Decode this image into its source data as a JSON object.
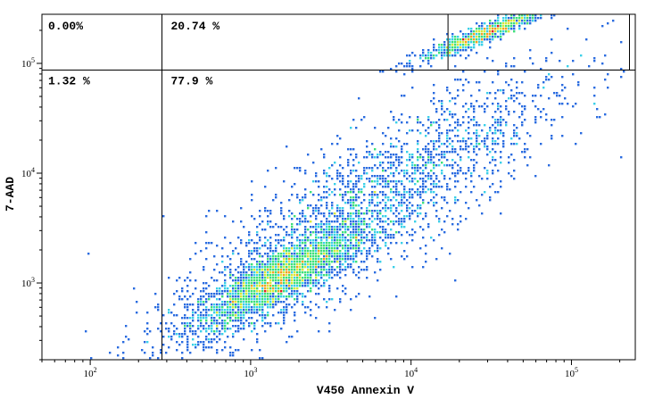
{
  "chart_data": {
    "type": "scatter",
    "title": "",
    "xlabel": "V450 Annexin V",
    "ylabel": "7-AAD",
    "x_scale": "log",
    "y_scale": "log",
    "xlim": [
      50,
      250000
    ],
    "ylim": [
      200,
      280000
    ],
    "x_ticks": [
      {
        "value": 100,
        "base": "10",
        "exp": "2"
      },
      {
        "value": 1000,
        "base": "10",
        "exp": "3"
      },
      {
        "value": 10000,
        "base": "10",
        "exp": "4"
      },
      {
        "value": 100000,
        "base": "10",
        "exp": "5"
      }
    ],
    "y_ticks": [
      {
        "value": 1000,
        "base": "10",
        "exp": "3"
      },
      {
        "value": 10000,
        "base": "10",
        "exp": "4"
      },
      {
        "value": 100000,
        "base": "10",
        "exp": "5"
      }
    ],
    "grid": false,
    "quadrant_gates": {
      "x": 280,
      "y": 87000
    },
    "quadrants": [
      {
        "position": "upper-left",
        "label": "0.00%"
      },
      {
        "position": "upper-right",
        "label": "20.74 %"
      },
      {
        "position": "lower-left",
        "label": "1.32 %"
      },
      {
        "position": "lower-right",
        "label": "77.9 %"
      }
    ],
    "gate_box": {
      "x": [
        17000,
        230000
      ],
      "y": [
        87000,
        280000
      ]
    },
    "density_colors": [
      "#1a10a8",
      "#2a6be0",
      "#3ad0e8",
      "#3ee07a",
      "#d6e83a",
      "#f2a020",
      "#e02020"
    ],
    "populations": [
      {
        "name": "",
        "center": [
          1500,
          1100
        ],
        "spread": [
          0.28,
          0.16
        ],
        "count": 2600
      },
      {
        "name": "",
        "center": [
          8000,
          8000
        ],
        "spread": [
          0.55,
          0.35
        ],
        "count": 1500
      },
      {
        "name": "",
        "center": [
          30000,
          190000
        ],
        "spread": [
          0.22,
          0.05
        ],
        "count": 900
      },
      {
        "name": "",
        "center": [
          2500,
          2000
        ],
        "spread": [
          0.6,
          0.45
        ],
        "count": 900
      }
    ]
  }
}
